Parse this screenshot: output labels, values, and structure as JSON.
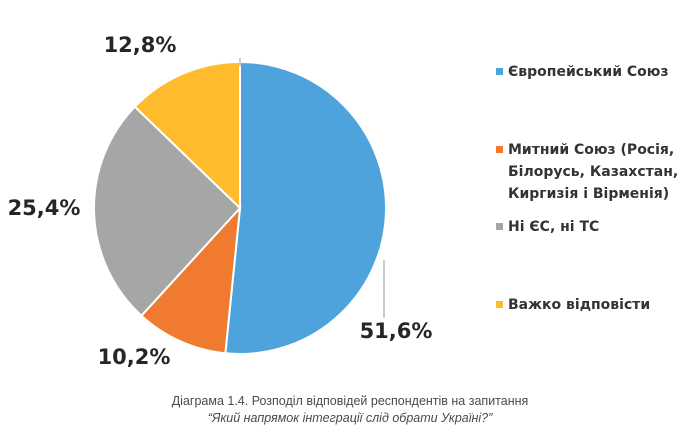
{
  "chart_data": {
    "type": "pie",
    "slices": [
      {
        "label": "Європейський Союз",
        "value": 51.6,
        "display": "51,6%",
        "color": "#4ea3dc"
      },
      {
        "label": "Митний Союз (Росія,\nБілорусь, Казахстан,\nКиргизія і Вірменія)",
        "value": 10.2,
        "display": "10,2%",
        "color": "#f07a30"
      },
      {
        "label": "Ні ЄС, ні ТС",
        "value": 25.4,
        "display": "25,4%",
        "color": "#a4a7a6"
      },
      {
        "label": "Важко відповісти",
        "value": 12.8,
        "display": "12,8%",
        "color": "#fdbb2d"
      }
    ],
    "start": "12 o'clock",
    "direction": "clockwise",
    "legend_position": "right"
  },
  "caption": {
    "line1": "Діаграма 1.4. Розподіл відповідей респондентів на запитання",
    "line2": "“Який напрямок інтеграції слід обрати Україні?”"
  }
}
